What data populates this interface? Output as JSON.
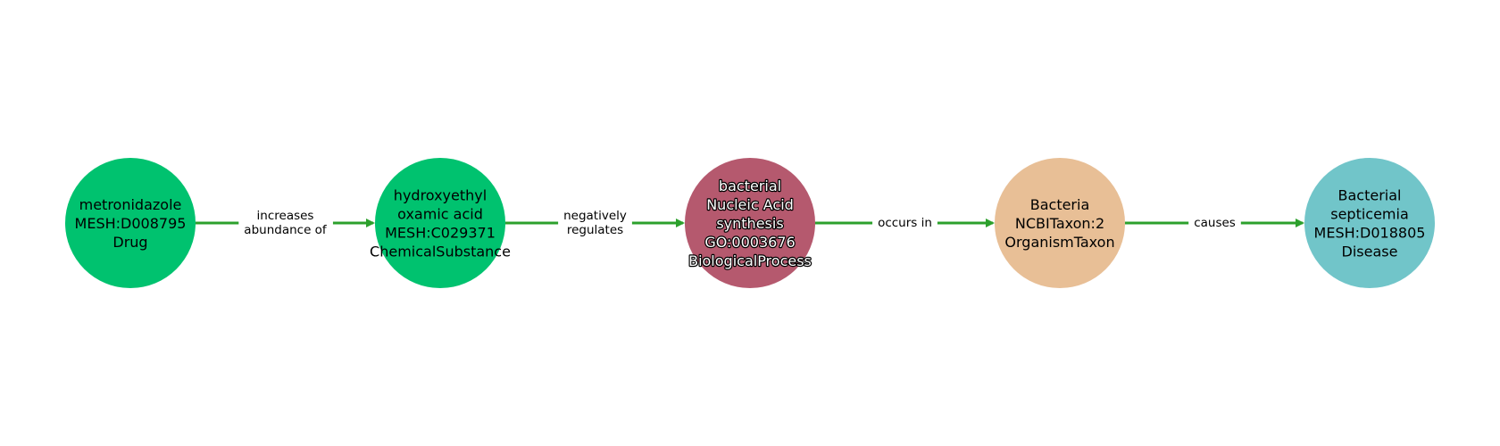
{
  "diagram": {
    "edge_color": "#2ca02c",
    "nodes": [
      {
        "id": "metronidazole",
        "lines": [
          "metronidazole",
          "MESH:D008795",
          "Drug"
        ],
        "color": "#00c26f",
        "halo_text": false
      },
      {
        "id": "hydroxyethyl-oxamic-acid",
        "lines": [
          "hydroxyethyl",
          "oxamic acid",
          "MESH:C029371",
          "ChemicalSubstance"
        ],
        "color": "#00c26f",
        "halo_text": false
      },
      {
        "id": "bacterial-nucleic-acid-synthesis",
        "lines": [
          "bacterial",
          "Nucleic Acid",
          "synthesis",
          "GO:0003676",
          "BiologicalProcess"
        ],
        "color": "#b5596e",
        "halo_text": true
      },
      {
        "id": "bacteria",
        "lines": [
          "Bacteria",
          "NCBITaxon:2",
          "OrganismTaxon"
        ],
        "color": "#e8bf96",
        "halo_text": false
      },
      {
        "id": "bacterial-septicemia",
        "lines": [
          "Bacterial",
          "septicemia",
          "MESH:D018805",
          "Disease"
        ],
        "color": "#71c5c9",
        "halo_text": false
      }
    ],
    "edges": [
      {
        "from": 0,
        "to": 1,
        "lines": [
          "increases",
          "abundance of"
        ]
      },
      {
        "from": 1,
        "to": 2,
        "lines": [
          "negatively",
          "regulates"
        ]
      },
      {
        "from": 2,
        "to": 3,
        "lines": [
          "occurs in"
        ]
      },
      {
        "from": 3,
        "to": 4,
        "lines": [
          "causes"
        ]
      }
    ]
  }
}
